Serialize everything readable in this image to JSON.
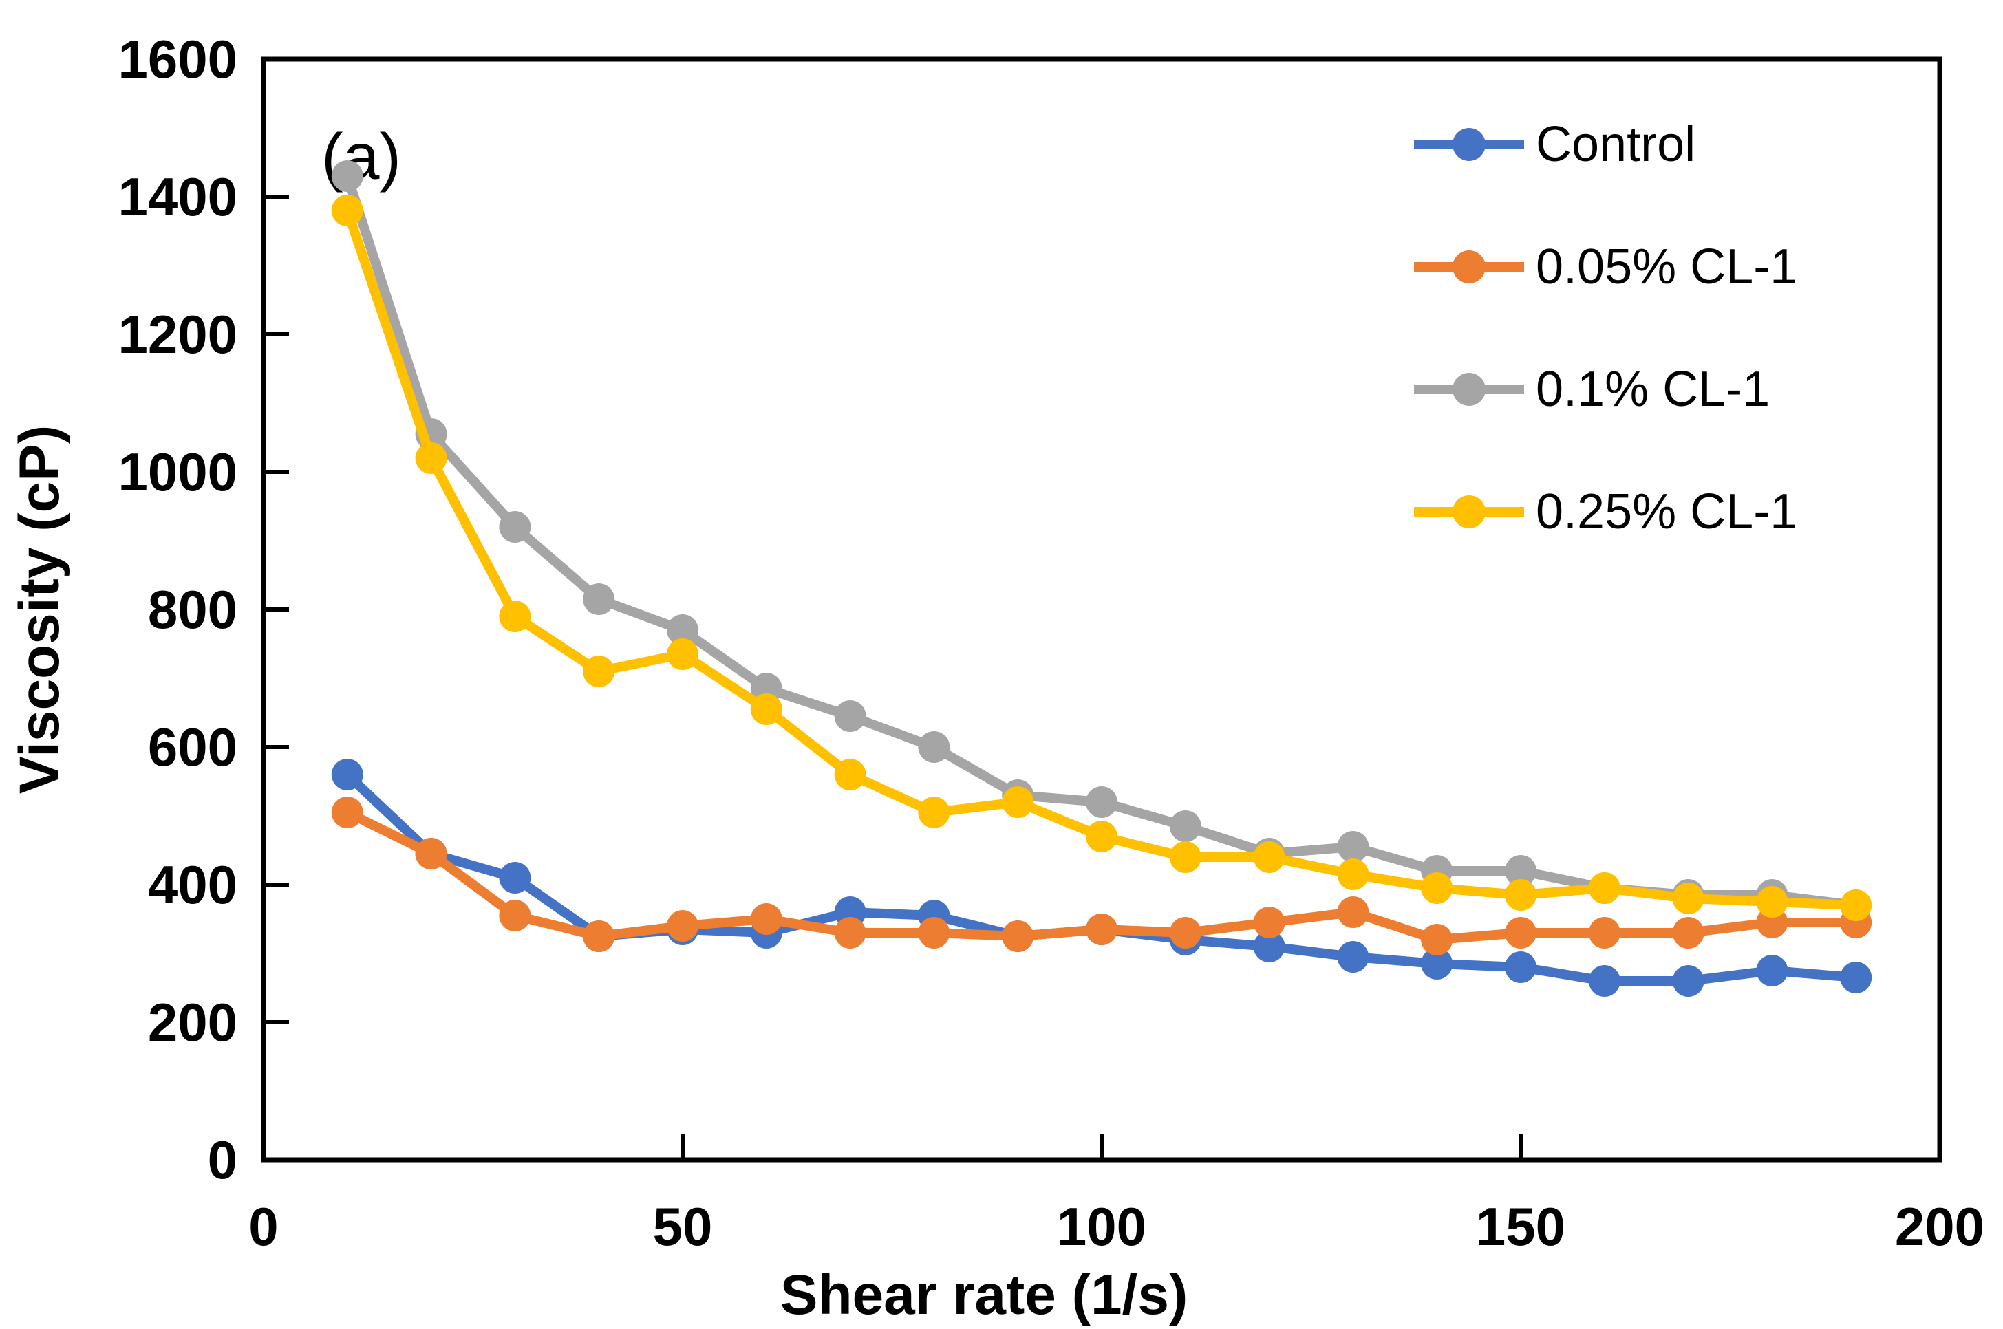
{
  "figure": {
    "panel_label": "(a)"
  },
  "chart_data": {
    "type": "line",
    "title": "",
    "xlabel": "Shear rate (1/s)",
    "ylabel": "Viscosity (cP)",
    "xlim": [
      0,
      200
    ],
    "ylim": [
      0,
      1600
    ],
    "grid": false,
    "legend_position": "top-right",
    "x_tick_labels": [
      "0",
      "50",
      "100",
      "150",
      "200"
    ],
    "y_tick_labels": [
      "0",
      "200",
      "400",
      "600",
      "800",
      "1000",
      "1200",
      "1400",
      "1600"
    ],
    "x_ticks": [
      0,
      50,
      100,
      150,
      200
    ],
    "y_ticks": [
      0,
      200,
      400,
      600,
      800,
      1000,
      1200,
      1400,
      1600
    ],
    "x": [
      10,
      20,
      30,
      40,
      50,
      60,
      70,
      80,
      90,
      100,
      110,
      120,
      130,
      140,
      150,
      160,
      170,
      180,
      190
    ],
    "series": [
      {
        "name": "Control",
        "color": "#4472C4",
        "values": [
          560,
          445,
          410,
          325,
          335,
          330,
          360,
          355,
          325,
          335,
          320,
          310,
          295,
          285,
          280,
          260,
          260,
          275,
          265
        ]
      },
      {
        "name": "0.05% CL-1",
        "color": "#ED7D31",
        "values": [
          505,
          445,
          355,
          325,
          340,
          350,
          330,
          330,
          325,
          335,
          330,
          345,
          360,
          320,
          330,
          330,
          330,
          345,
          345
        ]
      },
      {
        "name": "0.1% CL-1",
        "color": "#A5A5A5",
        "values": [
          1430,
          1055,
          920,
          815,
          770,
          685,
          645,
          600,
          530,
          520,
          485,
          445,
          455,
          420,
          420,
          395,
          385,
          385,
          370
        ]
      },
      {
        "name": "0.25% CL-1",
        "color": "#FFC000",
        "values": [
          1380,
          1020,
          790,
          710,
          735,
          655,
          560,
          505,
          520,
          470,
          440,
          440,
          415,
          395,
          385,
          395,
          380,
          375,
          370
        ]
      }
    ]
  }
}
